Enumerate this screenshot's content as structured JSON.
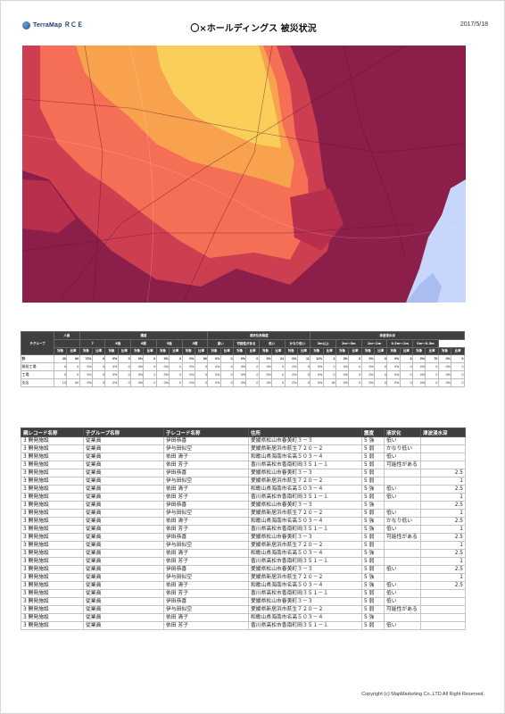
{
  "header": {
    "logo_text": "TerraMap ＲＣＥ",
    "title": "〇×ホールディングス 被災状況",
    "date": "2017/5/18"
  },
  "map": {
    "kind": "hazard-intensity-map",
    "colors": {
      "severe": "#8b1f4a",
      "high": "#cd3f50",
      "mid": "#f46f55",
      "low": "#f9a24e",
      "lowest": "#f9cf5a",
      "water": "#c8d6fb"
    }
  },
  "summary": {
    "groups": [
      {
        "label": "テグループ",
        "span": 1
      },
      {
        "label": "人員",
        "span": 3
      },
      {
        "label": "震度",
        "span": 10
      },
      {
        "label": "液状化危険度",
        "span": 8
      },
      {
        "label": "津波浸水深",
        "span": 10
      }
    ],
    "subgroups": [
      "",
      "",
      "7",
      "6強",
      "6弱",
      "5強",
      "5弱",
      "高い",
      "可能性がある",
      "低い",
      "かなり低い",
      "3m以上",
      "2m〜3m",
      "1m〜2m",
      "0.5m〜1m",
      "0m〜0.5m"
    ],
    "subheaders": [
      "対象",
      "比率"
    ],
    "rows": [
      {
        "label": "計",
        "values": [
          "30",
          "60",
          "72%",
          "0",
          "0%",
          "0",
          "0%",
          "0",
          "0%",
          "0",
          "0%",
          "60",
          "0%",
          "0",
          "0%",
          "0",
          "0%",
          "21",
          "0%",
          "11",
          "11%",
          "3",
          "3%",
          "0",
          "0%",
          "0",
          "0%",
          "6",
          "0%",
          "70",
          "0%",
          "0",
          "0%"
        ]
      },
      {
        "label": "開発工場",
        "values": [
          "0",
          "0",
          "0%",
          "0",
          "0%",
          "0",
          "0%",
          "0",
          "0%",
          "0",
          "0%",
          "0",
          "0%",
          "0",
          "0%",
          "0",
          "0%",
          "0",
          "0%",
          "0",
          "0%",
          "0",
          "0%",
          "0",
          "0%",
          "0",
          "0%",
          "0",
          "0%",
          "0",
          "0%",
          "0",
          "0%"
        ]
      },
      {
        "label": "工場",
        "values": [
          "0",
          "0",
          "0%",
          "0",
          "0%",
          "0",
          "0%",
          "0",
          "0%",
          "0",
          "0%",
          "0",
          "0%",
          "0",
          "0%",
          "0",
          "0%",
          "0",
          "0%",
          "0",
          "0%",
          "0",
          "0%",
          "0",
          "0%",
          "0",
          "0%",
          "0",
          "0%",
          "0",
          "0%",
          "0",
          "0%"
        ]
      },
      {
        "label": "支店",
        "values": [
          "13",
          "60",
          "0%",
          "0",
          "0%",
          "0",
          "0%",
          "0",
          "0%",
          "0",
          "0%",
          "0",
          "0%",
          "0",
          "0%",
          "0",
          "0%",
          "0",
          "0%",
          "0",
          "0%",
          "45",
          "0%",
          "0",
          "0%",
          "0",
          "0%",
          "0",
          "0%",
          "0",
          "0%",
          "0",
          "0%"
        ]
      }
    ]
  },
  "detail": {
    "headers": [
      "親レコード名称",
      "子グループ名称",
      "子レコード名称",
      "住所",
      "震度",
      "液状化",
      "津波浸水深"
    ],
    "rows": [
      [
        "3 開発施設",
        "従業員",
        "伊田恭喜",
        "愛媛県松山市春美町３－３",
        "5 強",
        "低い",
        ""
      ],
      [
        "3 開発施設",
        "従業員",
        "伊与田似空",
        "愛媛県新居浜市萩生７２０－２",
        "5 弱",
        "かなり低い",
        ""
      ],
      [
        "3 開発施設",
        "従業員",
        "依田 清子",
        "和歌山県海南市名高５０３－４",
        "5 弱",
        "低い",
        ""
      ],
      [
        "3 開発施設",
        "従業員",
        "依田 芳子",
        "香川県高松市香南町岡３５１－１",
        "5 弱",
        "可能性がある",
        ""
      ],
      [
        "3 開発施設",
        "従業員",
        "伊田恭喜",
        "愛媛県松山市春美町３－３",
        "5 弱",
        "",
        "2.5"
      ],
      [
        "3 開発施設",
        "従業員",
        "伊与田似空",
        "愛媛県新居浜市萩生７２０－２",
        "5 弱",
        "",
        "1"
      ],
      [
        "3 開発施設",
        "従業員",
        "依田 清子",
        "和歌山県海南市名高５０３－４",
        "5 強",
        "低い",
        "2.5"
      ],
      [
        "3 開発施設",
        "従業員",
        "依田 芳子",
        "香川県高松市香南町岡３５１－１",
        "5 弱",
        "低い",
        "1"
      ],
      [
        "3 開発施設",
        "従業員",
        "伊田恭喜",
        "愛媛県松山市春美町３－３",
        "5 強",
        "",
        "2.5"
      ],
      [
        "3 開発施設",
        "従業員",
        "伊与田似空",
        "愛媛県新居浜市萩生７２０－２",
        "5 弱",
        "低い",
        "1"
      ],
      [
        "3 開発施設",
        "従業員",
        "依田 清子",
        "和歌山県海南市名高５０３－４",
        "5 強",
        "かなり低い",
        "2.5"
      ],
      [
        "3 開発施設",
        "従業員",
        "依田 芳子",
        "香川県高松市香南町岡３５１－１",
        "5 強",
        "低い",
        "1"
      ],
      [
        "3 開発施設",
        "従業員",
        "伊田恭喜",
        "愛媛県松山市春美町３－３",
        "5 弱",
        "可能性がある",
        "2.5"
      ],
      [
        "3 開発施設",
        "従業員",
        "伊与田似空",
        "愛媛県新居浜市萩生７２０－２",
        "5 弱",
        "",
        "1"
      ],
      [
        "3 開発施設",
        "従業員",
        "依田 清子",
        "和歌山県海南市名高５０３－４",
        "5 強",
        "",
        "2.5"
      ],
      [
        "3 開発施設",
        "従業員",
        "依田 芳子",
        "香川県高松市香南町岡３５１－１",
        "5 弱",
        "",
        "1"
      ],
      [
        "3 開発施設",
        "従業員",
        "伊田恭喜",
        "愛媛県松山市春美町３－３",
        "5 弱",
        "低い",
        "2.5"
      ],
      [
        "3 開発施設",
        "従業員",
        "伊与田似空",
        "愛媛県新居浜市萩生７２０－２",
        "5 強",
        "",
        "1"
      ],
      [
        "3 開発施設",
        "従業員",
        "依田 清子",
        "和歌山県海南市名高５０３－４",
        "5 強",
        "低い",
        "2.5"
      ],
      [
        "3 開発施設",
        "従業員",
        "依田 芳子",
        "香川県高松市香南町岡３５１－１",
        "5 弱",
        "低い",
        ""
      ],
      [
        "3 開発施設",
        "従業員",
        "伊田恭喜",
        "愛媛県松山市春美町３－３",
        "5 弱",
        "低い",
        ""
      ],
      [
        "3 開発施設",
        "従業員",
        "伊与田似空",
        "愛媛県新居浜市萩生７２０－２",
        "5 弱",
        "可能性がある",
        ""
      ],
      [
        "3 開発施設",
        "従業員",
        "依田 清子",
        "和歌山県海南市名高５０３－４",
        "5 強",
        "",
        ""
      ],
      [
        "3 開発施設",
        "従業員",
        "依田 芳子",
        "香川県高松市香南町岡３５１－１",
        "5 弱",
        "低い",
        ""
      ]
    ]
  },
  "footer": {
    "copyright": "Copyright (c) MapMarketing Co.,LTD All Right Reserved."
  }
}
